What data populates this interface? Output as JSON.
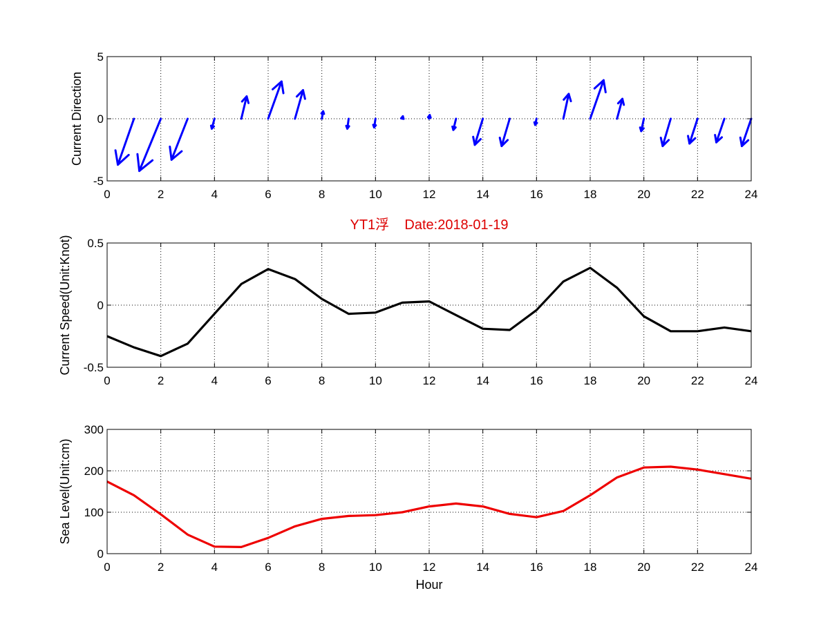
{
  "chart_data": [
    {
      "type": "quiver",
      "ylabel": "Current Direction",
      "xlim": [
        0,
        24
      ],
      "ylim": [
        -5,
        5
      ],
      "xticks": [
        0,
        2,
        4,
        6,
        8,
        10,
        12,
        14,
        16,
        18,
        20,
        22,
        24
      ],
      "yticks": [
        -5,
        0,
        5
      ],
      "grid": true,
      "color": "#0000ff",
      "vectors": [
        {
          "x": 1,
          "u": -0.6,
          "v": -3.7
        },
        {
          "x": 2,
          "u": -0.8,
          "v": -4.2
        },
        {
          "x": 3,
          "u": -0.6,
          "v": -3.3
        },
        {
          "x": 4,
          "u": -0.1,
          "v": -0.8
        },
        {
          "x": 5,
          "u": 0.2,
          "v": 1.8
        },
        {
          "x": 6,
          "u": 0.5,
          "v": 3.0
        },
        {
          "x": 7,
          "u": 0.3,
          "v": 2.3
        },
        {
          "x": 8,
          "u": 0.05,
          "v": 0.6
        },
        {
          "x": 9,
          "u": -0.05,
          "v": -0.8
        },
        {
          "x": 10,
          "u": -0.05,
          "v": -0.7
        },
        {
          "x": 11,
          "u": 0.02,
          "v": 0.2
        },
        {
          "x": 12,
          "u": 0.02,
          "v": 0.3
        },
        {
          "x": 13,
          "u": -0.1,
          "v": -0.9
        },
        {
          "x": 14,
          "u": -0.3,
          "v": -2.1
        },
        {
          "x": 15,
          "u": -0.3,
          "v": -2.2
        },
        {
          "x": 16,
          "u": -0.05,
          "v": -0.5
        },
        {
          "x": 17,
          "u": 0.2,
          "v": 2.0
        },
        {
          "x": 18,
          "u": 0.5,
          "v": 3.1
        },
        {
          "x": 19,
          "u": 0.2,
          "v": 1.6
        },
        {
          "x": 20,
          "u": -0.1,
          "v": -1.0
        },
        {
          "x": 21,
          "u": -0.3,
          "v": -2.2
        },
        {
          "x": 22,
          "u": -0.3,
          "v": -2.0
        },
        {
          "x": 23,
          "u": -0.3,
          "v": -1.9
        },
        {
          "x": 24,
          "u": -0.35,
          "v": -2.2
        }
      ]
    },
    {
      "type": "line",
      "title": "YT1浮    Date:2018-01-19",
      "title_color": "#dd0000",
      "ylabel": "Current Speed(Unit:Knot)",
      "xlim": [
        0,
        24
      ],
      "ylim": [
        -0.5,
        0.5
      ],
      "xticks": [
        0,
        2,
        4,
        6,
        8,
        10,
        12,
        14,
        16,
        18,
        20,
        22,
        24
      ],
      "yticks": [
        -0.5,
        0,
        0.5
      ],
      "grid": true,
      "color": "#000000",
      "x": [
        0,
        1,
        2,
        3,
        4,
        5,
        6,
        7,
        8,
        9,
        10,
        11,
        12,
        13,
        14,
        15,
        16,
        17,
        18,
        19,
        20,
        21,
        22,
        23,
        24
      ],
      "y": [
        -0.25,
        -0.34,
        -0.41,
        -0.31,
        -0.07,
        0.17,
        0.29,
        0.21,
        0.05,
        -0.07,
        -0.06,
        0.02,
        0.03,
        -0.08,
        -0.19,
        -0.2,
        -0.04,
        0.19,
        0.3,
        0.14,
        -0.09,
        -0.21,
        -0.21,
        -0.18,
        -0.21
      ]
    },
    {
      "type": "line",
      "ylabel": "Sea Level(Unit:cm)",
      "xlabel": "Hour",
      "xlim": [
        0,
        24
      ],
      "ylim": [
        0,
        300
      ],
      "xticks": [
        0,
        2,
        4,
        6,
        8,
        10,
        12,
        14,
        16,
        18,
        20,
        22,
        24
      ],
      "yticks": [
        0,
        100,
        200,
        300
      ],
      "grid": true,
      "color": "#ee0000",
      "x": [
        0,
        1,
        2,
        3,
        4,
        5,
        6,
        7,
        8,
        9,
        10,
        11,
        12,
        13,
        14,
        15,
        16,
        17,
        18,
        19,
        20,
        21,
        22,
        23,
        24
      ],
      "y": [
        174,
        141,
        95,
        46,
        17,
        16,
        38,
        66,
        84,
        91,
        93,
        100,
        114,
        121,
        114,
        96,
        88,
        103,
        141,
        184,
        208,
        210,
        203,
        192,
        181
      ]
    }
  ]
}
